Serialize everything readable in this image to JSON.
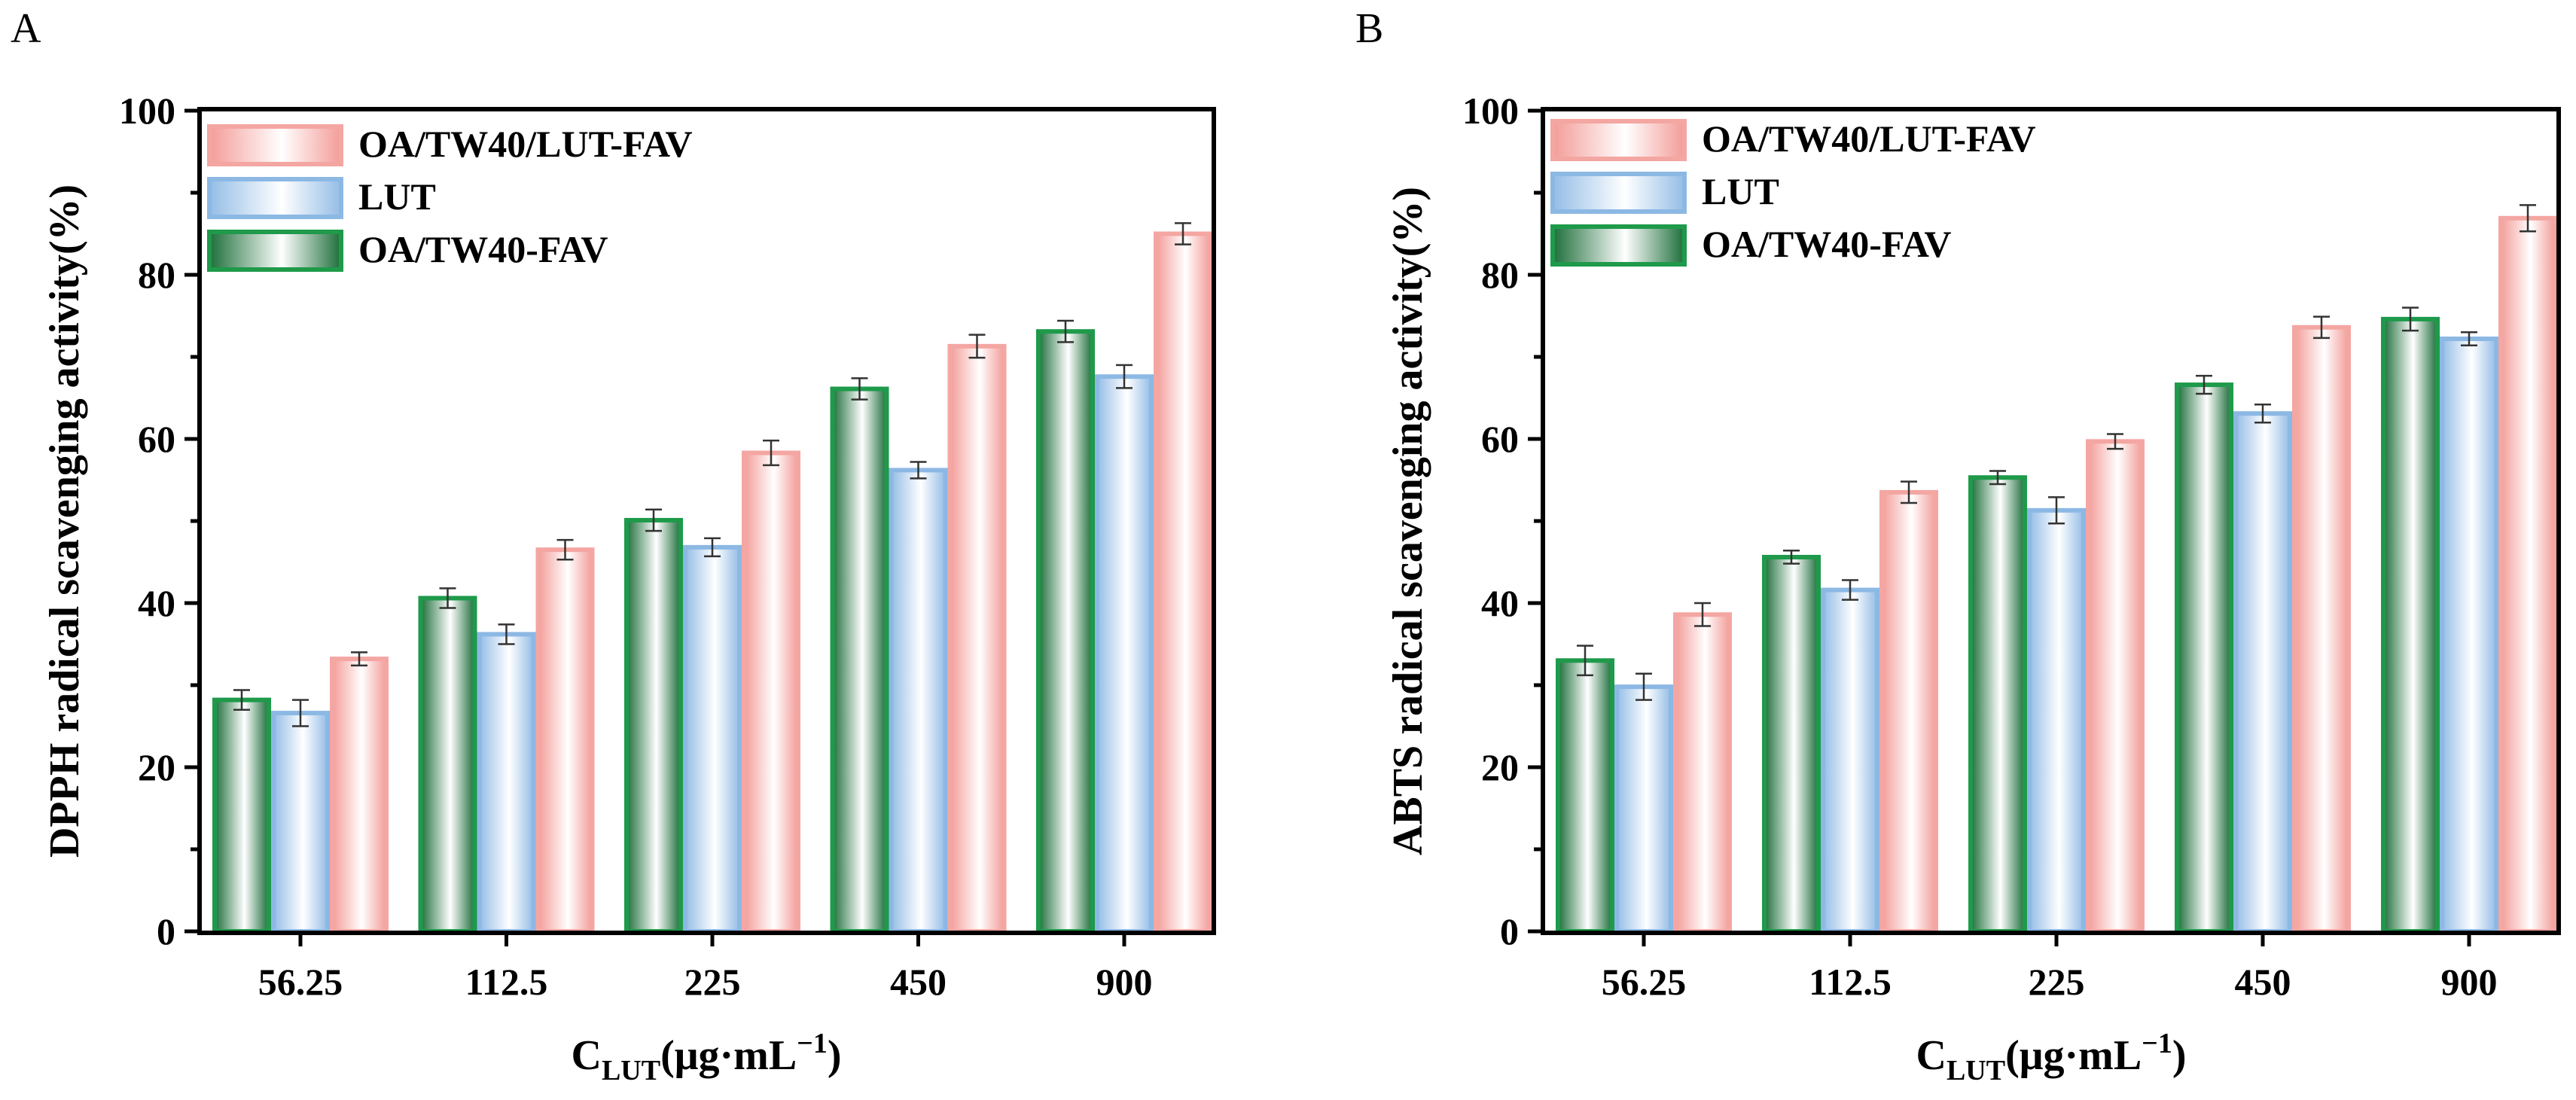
{
  "colors": {
    "green": "#1e9a4a",
    "blue": "#8cb8e4",
    "pink": "#f4a6a2",
    "axis": "#000000",
    "error": "#333333"
  },
  "chart_data": [
    {
      "panel": "A",
      "type": "bar",
      "categories": [
        "56.25",
        "112.5",
        "225",
        "450",
        "900"
      ],
      "series": [
        {
          "name": "OA/TW40-FAV",
          "style": "green",
          "values": [
            28.2,
            40.6,
            50.1,
            66.1,
            73.1
          ],
          "errors": [
            1.2,
            1.2,
            1.3,
            1.3,
            1.3
          ]
        },
        {
          "name": "LUT",
          "style": "blue",
          "values": [
            26.6,
            36.2,
            46.8,
            56.2,
            67.6
          ],
          "errors": [
            1.6,
            1.2,
            1.1,
            1.0,
            1.4
          ]
        },
        {
          "name": "OA/TW40/LUT-FAV",
          "style": "pink",
          "values": [
            33.2,
            46.5,
            58.3,
            71.3,
            85.0
          ],
          "errors": [
            0.8,
            1.2,
            1.5,
            1.4,
            1.3
          ]
        }
      ],
      "legend_order": [
        2,
        1,
        0
      ],
      "ylim": [
        0,
        100
      ],
      "yticks": [
        0,
        20,
        40,
        60,
        80,
        100
      ],
      "ylabel": "DPPH radical scavenging activity(%)",
      "xlabel": {
        "main": "C",
        "sub": "LUT",
        "rest": "(μg·mL",
        "sup": "−1",
        "close": ")"
      },
      "legend_position": "top-left"
    },
    {
      "panel": "B",
      "type": "bar",
      "categories": [
        "56.25",
        "112.5",
        "225",
        "450",
        "900"
      ],
      "series": [
        {
          "name": "OA/TW40-FAV",
          "style": "green",
          "values": [
            33.0,
            45.6,
            55.3,
            66.6,
            74.6
          ],
          "errors": [
            1.8,
            0.8,
            0.8,
            1.1,
            1.4
          ]
        },
        {
          "name": "LUT",
          "style": "blue",
          "values": [
            29.8,
            41.6,
            51.3,
            63.1,
            72.2
          ],
          "errors": [
            1.6,
            1.2,
            1.6,
            1.1,
            0.8
          ]
        },
        {
          "name": "OA/TW40/LUT-FAV",
          "style": "pink",
          "values": [
            38.6,
            53.5,
            59.7,
            73.6,
            86.9
          ],
          "errors": [
            1.4,
            1.3,
            0.9,
            1.3,
            1.6
          ]
        }
      ],
      "legend_order": [
        2,
        1,
        0
      ],
      "ylim": [
        0,
        100
      ],
      "yticks": [
        0,
        20,
        40,
        60,
        80,
        100
      ],
      "ylabel": "ABTS radical scavenging activity(%)",
      "xlabel": {
        "main": "C",
        "sub": "LUT",
        "rest": "(μg·mL",
        "sup": "−1",
        "close": ")"
      },
      "legend_position": "top-left"
    }
  ]
}
